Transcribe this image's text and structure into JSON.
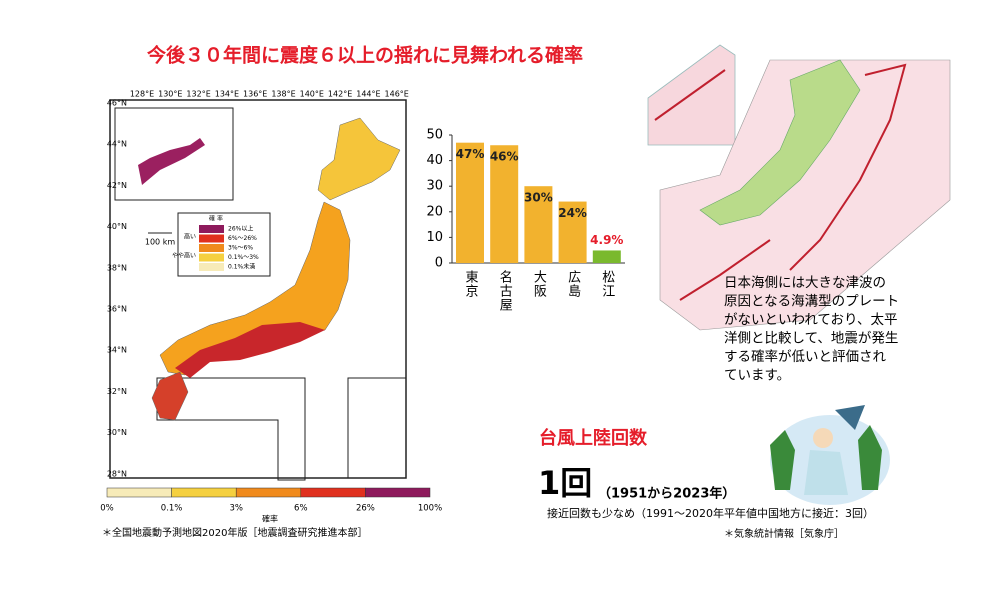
{
  "title": "今後３０年間に震度６以上の揺れに見舞われる確率",
  "map": {
    "lon_labels": [
      "128°E",
      "130°E",
      "132°E",
      "134°E",
      "136°E",
      "138°E",
      "140°E",
      "142°E",
      "144°E",
      "146°E"
    ],
    "lat_labels": [
      "46°N",
      "44°N",
      "42°N",
      "40°N",
      "38°N",
      "36°N",
      "34°N",
      "32°N",
      "30°N",
      "28°N"
    ],
    "legend": {
      "title": "確 率",
      "high": "高い",
      "mid": "やや高い",
      "items": [
        "26%以上",
        "6%～26%",
        "3%～6%",
        "0.1%～3%",
        "0.1%未満"
      ],
      "colors": [
        "#8e1a5c",
        "#e0301e",
        "#f08a1c",
        "#f5d040",
        "#f7ebb8"
      ]
    },
    "scale": "100 km",
    "colorbar": {
      "labels": [
        "0%",
        "0.1%",
        "3%",
        "6%",
        "26%",
        "100%"
      ],
      "title": "確率"
    },
    "source": "＊全国地震動予測地図2020年版［地震調査研究推進本部］"
  },
  "chart_data": {
    "type": "bar",
    "categories": [
      "東京",
      "名古屋",
      "大阪",
      "広島",
      "松江"
    ],
    "values": [
      47,
      46,
      30,
      24,
      4.9
    ],
    "value_labels": [
      "47%",
      "46%",
      "30%",
      "24%",
      "4.9%"
    ],
    "colors": [
      "#f2b22e",
      "#f2b22e",
      "#f2b22e",
      "#f2b22e",
      "#7ab92d"
    ],
    "ylim": [
      0,
      50
    ],
    "yticks": [
      0,
      10,
      20,
      30,
      40,
      50
    ]
  },
  "explanation": [
    "日本海側には大きな津波の",
    "原因となる海溝型のプレート",
    "がないといわれており、太平",
    "洋側と比較して、地震が発生",
    "する確率が低いと評価され",
    "ています。"
  ],
  "typhoon": {
    "title": "台風上陸回数",
    "count": "1回",
    "period": "（1951から2023年）",
    "note": "接近回数も少なめ（1991～2020年平年値中国地方に接近：3回）",
    "source": "＊気象統計情報［気象庁］"
  }
}
